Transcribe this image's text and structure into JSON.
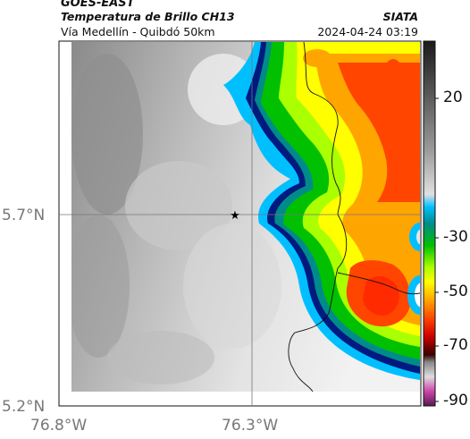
{
  "header": {
    "satellite": "GOES-EAST",
    "product": "Temperatura de Brillo CH13",
    "route": "Vía Medellín - Quibdó 50km",
    "org": "SIATA",
    "timestamp": "2024-04-24 03:19"
  },
  "map": {
    "lat_ticks": [
      "5.7°N",
      "5.2°N"
    ],
    "lon_ticks": [
      "76.8°W",
      "76.3°W"
    ],
    "marker": "star"
  },
  "colorbar": {
    "ticks": [
      "20",
      "-30",
      "-50",
      "-70",
      "-90"
    ],
    "colors": [
      "#1a1a1a",
      "#5a5a5a",
      "#9b9b9b",
      "#d5d5d5",
      "#ffffff",
      "#00bfff",
      "#008b8b",
      "#00c000",
      "#aaff00",
      "#ffff00",
      "#ffa500",
      "#ff4500",
      "#cc0000",
      "#3a0000",
      "#888888",
      "#dddddd",
      "#cc44aa",
      "#551a55"
    ]
  }
}
